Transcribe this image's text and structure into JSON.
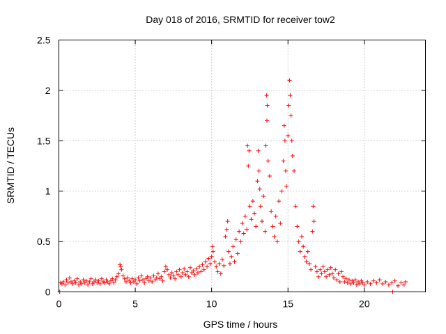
{
  "chart_data": {
    "type": "scatter",
    "title": "Day 018 of 2016, SRMTID for receiver tow2",
    "xlabel": "GPS time / hours",
    "ylabel": "SRMTID / TECUs",
    "xlim": [
      0,
      24
    ],
    "ylim": [
      0,
      2.5
    ],
    "xticks": [
      0,
      5,
      10,
      15,
      20
    ],
    "yticks": [
      0,
      0.5,
      1,
      1.5,
      2,
      2.5
    ],
    "xtick_labels": [
      "0",
      "5",
      "10",
      "15",
      "20"
    ],
    "ytick_labels": [
      "0",
      "0.5",
      "1",
      "1.5",
      "2",
      "2.5"
    ],
    "grid": true,
    "marker": "+",
    "series": [
      {
        "name": "SRMTID",
        "color": "#ff0000",
        "points": [
          [
            0.05,
            0.0
          ],
          [
            0.1,
            0.09
          ],
          [
            0.2,
            0.08
          ],
          [
            0.3,
            0.1
          ],
          [
            0.4,
            0.07
          ],
          [
            0.5,
            0.12
          ],
          [
            0.6,
            0.09
          ],
          [
            0.7,
            0.14
          ],
          [
            0.8,
            0.1
          ],
          [
            0.9,
            0.08
          ],
          [
            1.0,
            0.11
          ],
          [
            1.1,
            0.09
          ],
          [
            1.2,
            0.13
          ],
          [
            1.3,
            0.07
          ],
          [
            1.4,
            0.1
          ],
          [
            1.5,
            0.08
          ],
          [
            1.6,
            0.12
          ],
          [
            1.7,
            0.09
          ],
          [
            1.8,
            0.11
          ],
          [
            1.9,
            0.07
          ],
          [
            2.0,
            0.1
          ],
          [
            2.1,
            0.13
          ],
          [
            2.2,
            0.08
          ],
          [
            2.3,
            0.1
          ],
          [
            2.4,
            0.12
          ],
          [
            2.5,
            0.09
          ],
          [
            2.6,
            0.11
          ],
          [
            2.7,
            0.08
          ],
          [
            2.8,
            0.13
          ],
          [
            2.9,
            0.1
          ],
          [
            3.0,
            0.09
          ],
          [
            3.1,
            0.12
          ],
          [
            3.2,
            0.1
          ],
          [
            3.3,
            0.08
          ],
          [
            3.4,
            0.11
          ],
          [
            3.5,
            0.13
          ],
          [
            3.6,
            0.09
          ],
          [
            3.7,
            0.12
          ],
          [
            3.8,
            0.15
          ],
          [
            3.9,
            0.18
          ],
          [
            4.0,
            0.27
          ],
          [
            4.05,
            0.25
          ],
          [
            4.1,
            0.22
          ],
          [
            4.2,
            0.16
          ],
          [
            4.3,
            0.13
          ],
          [
            4.4,
            0.1
          ],
          [
            4.5,
            0.14
          ],
          [
            4.6,
            0.11
          ],
          [
            4.7,
            0.09
          ],
          [
            4.8,
            0.13
          ],
          [
            4.9,
            0.1
          ],
          [
            5.0,
            0.12
          ],
          [
            5.1,
            0.08
          ],
          [
            5.2,
            0.14
          ],
          [
            5.3,
            0.11
          ],
          [
            5.4,
            0.16
          ],
          [
            5.5,
            0.12
          ],
          [
            5.6,
            0.09
          ],
          [
            5.7,
            0.13
          ],
          [
            5.8,
            0.15
          ],
          [
            5.9,
            0.11
          ],
          [
            6.0,
            0.14
          ],
          [
            6.1,
            0.1
          ],
          [
            6.2,
            0.16
          ],
          [
            6.3,
            0.12
          ],
          [
            6.4,
            0.14
          ],
          [
            6.5,
            0.18
          ],
          [
            6.6,
            0.13
          ],
          [
            6.7,
            0.15
          ],
          [
            6.8,
            0.11
          ],
          [
            6.9,
            0.2
          ],
          [
            7.0,
            0.25
          ],
          [
            7.1,
            0.22
          ],
          [
            7.2,
            0.17
          ],
          [
            7.3,
            0.14
          ],
          [
            7.4,
            0.19
          ],
          [
            7.5,
            0.16
          ],
          [
            7.6,
            0.13
          ],
          [
            7.7,
            0.2
          ],
          [
            7.8,
            0.17
          ],
          [
            7.9,
            0.22
          ],
          [
            8.0,
            0.15
          ],
          [
            8.1,
            0.19
          ],
          [
            8.2,
            0.23
          ],
          [
            8.3,
            0.17
          ],
          [
            8.4,
            0.2
          ],
          [
            8.5,
            0.15
          ],
          [
            8.6,
            0.24
          ],
          [
            8.7,
            0.19
          ],
          [
            8.8,
            0.21
          ],
          [
            8.9,
            0.17
          ],
          [
            9.0,
            0.23
          ],
          [
            9.1,
            0.19
          ],
          [
            9.2,
            0.25
          ],
          [
            9.3,
            0.2
          ],
          [
            9.4,
            0.27
          ],
          [
            9.5,
            0.22
          ],
          [
            9.6,
            0.3
          ],
          [
            9.7,
            0.25
          ],
          [
            9.8,
            0.33
          ],
          [
            9.9,
            0.28
          ],
          [
            10.0,
            0.35
          ],
          [
            10.05,
            0.45
          ],
          [
            10.1,
            0.4
          ],
          [
            10.2,
            0.3
          ],
          [
            10.3,
            0.25
          ],
          [
            10.4,
            0.2
          ],
          [
            10.5,
            0.28
          ],
          [
            10.6,
            0.18
          ],
          [
            10.7,
            0.32
          ],
          [
            10.8,
            0.26
          ],
          [
            10.9,
            0.55
          ],
          [
            11.0,
            0.62
          ],
          [
            11.05,
            0.7
          ],
          [
            11.1,
            0.4
          ],
          [
            11.2,
            0.28
          ],
          [
            11.3,
            0.35
          ],
          [
            11.4,
            0.45
          ],
          [
            11.5,
            0.3
          ],
          [
            11.6,
            0.52
          ],
          [
            11.7,
            0.38
          ],
          [
            11.8,
            0.6
          ],
          [
            11.9,
            0.5
          ],
          [
            12.0,
            0.68
          ],
          [
            12.1,
            0.58
          ],
          [
            12.2,
            0.75
          ],
          [
            12.3,
            0.62
          ],
          [
            12.35,
            1.45
          ],
          [
            12.4,
            1.25
          ],
          [
            12.45,
            1.4
          ],
          [
            12.5,
            0.85
          ],
          [
            12.6,
            0.72
          ],
          [
            12.7,
            0.9
          ],
          [
            12.8,
            0.78
          ],
          [
            12.9,
            0.65
          ],
          [
            13.0,
            1.1
          ],
          [
            13.05,
            1.4
          ],
          [
            13.1,
            1.2
          ],
          [
            13.15,
            1.02
          ],
          [
            13.2,
            0.85
          ],
          [
            13.3,
            0.7
          ],
          [
            13.4,
            0.95
          ],
          [
            13.5,
            0.6
          ],
          [
            13.55,
            1.45
          ],
          [
            13.6,
            1.95
          ],
          [
            13.62,
            1.7
          ],
          [
            13.65,
            1.85
          ],
          [
            13.7,
            1.3
          ],
          [
            13.8,
            1.15
          ],
          [
            13.9,
            0.8
          ],
          [
            14.0,
            0.65
          ],
          [
            14.1,
            0.55
          ],
          [
            14.2,
            0.75
          ],
          [
            14.3,
            0.5
          ],
          [
            14.4,
            0.9
          ],
          [
            14.5,
            0.68
          ],
          [
            14.6,
            1.0
          ],
          [
            14.7,
            1.3
          ],
          [
            14.75,
            1.65
          ],
          [
            14.8,
            1.5
          ],
          [
            14.85,
            1.2
          ],
          [
            14.9,
            1.05
          ],
          [
            15.0,
            1.55
          ],
          [
            15.05,
            1.85
          ],
          [
            15.1,
            2.1
          ],
          [
            15.15,
            1.95
          ],
          [
            15.2,
            1.75
          ],
          [
            15.25,
            1.5
          ],
          [
            15.3,
            1.35
          ],
          [
            15.4,
            1.2
          ],
          [
            15.5,
            0.85
          ],
          [
            15.6,
            0.65
          ],
          [
            15.7,
            0.5
          ],
          [
            15.8,
            0.4
          ],
          [
            15.9,
            0.55
          ],
          [
            16.0,
            0.45
          ],
          [
            16.1,
            0.35
          ],
          [
            16.2,
            0.3
          ],
          [
            16.3,
            0.4
          ],
          [
            16.4,
            0.28
          ],
          [
            16.5,
            0.22
          ],
          [
            16.6,
            0.6
          ],
          [
            16.65,
            0.85
          ],
          [
            16.7,
            0.7
          ],
          [
            16.8,
            0.25
          ],
          [
            16.9,
            0.2
          ],
          [
            17.0,
            0.15
          ],
          [
            17.1,
            0.22
          ],
          [
            17.2,
            0.18
          ],
          [
            17.3,
            0.25
          ],
          [
            17.4,
            0.2
          ],
          [
            17.5,
            0.15
          ],
          [
            17.6,
            0.22
          ],
          [
            17.7,
            0.17
          ],
          [
            17.8,
            0.24
          ],
          [
            17.9,
            0.18
          ],
          [
            18.0,
            0.14
          ],
          [
            18.1,
            0.22
          ],
          [
            18.2,
            0.12
          ],
          [
            18.3,
            0.18
          ],
          [
            18.4,
            0.1
          ],
          [
            18.5,
            0.2
          ],
          [
            18.6,
            0.15
          ],
          [
            18.7,
            0.1
          ],
          [
            18.8,
            0.13
          ],
          [
            18.9,
            0.09
          ],
          [
            19.0,
            0.12
          ],
          [
            19.1,
            0.08
          ],
          [
            19.2,
            0.11
          ],
          [
            19.3,
            0.09
          ],
          [
            19.4,
            0.12
          ],
          [
            19.5,
            0.07
          ],
          [
            19.6,
            0.1
          ],
          [
            19.7,
            0.08
          ],
          [
            19.8,
            0.11
          ],
          [
            19.9,
            0.09
          ],
          [
            20.0,
            0.07
          ],
          [
            20.2,
            0.1
          ],
          [
            20.4,
            0.08
          ],
          [
            20.6,
            0.11
          ],
          [
            20.8,
            0.09
          ],
          [
            21.0,
            0.12
          ],
          [
            21.2,
            0.08
          ],
          [
            21.4,
            0.1
          ],
          [
            21.6,
            0.07
          ],
          [
            21.8,
            0.09
          ],
          [
            21.85,
            0.0
          ],
          [
            22.0,
            0.11
          ],
          [
            22.2,
            0.06
          ],
          [
            22.4,
            0.09
          ],
          [
            22.6,
            0.07
          ],
          [
            22.7,
            0.1
          ]
        ]
      }
    ]
  }
}
